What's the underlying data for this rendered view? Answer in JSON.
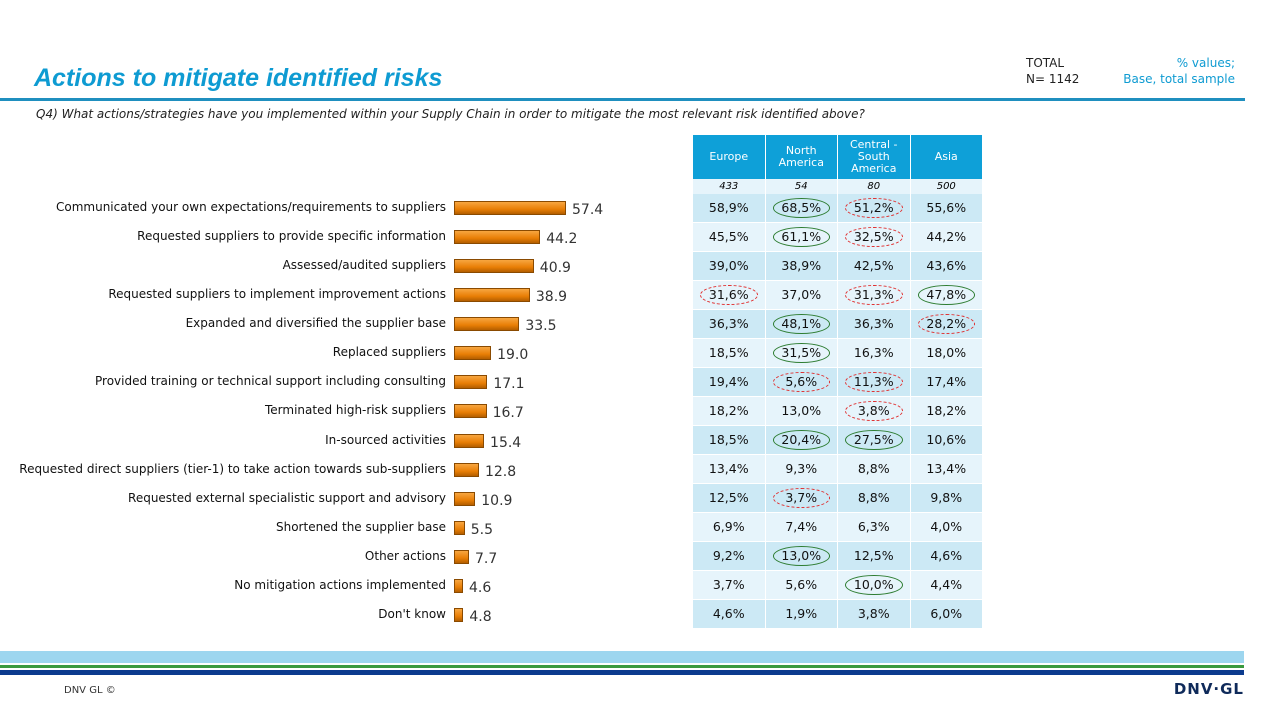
{
  "title": "Actions to mitigate identified risks",
  "total_label": "TOTAL",
  "total_n": "N= 1142",
  "note_line1": "% values;",
  "note_line2": "Base, total sample",
  "question": "Q4) What actions/strategies have you implemented within your Supply Chain in order to mitigate the most relevant risk identified above?",
  "footer": {
    "copyright": "DNV GL ©",
    "logo": "DNV·GL"
  },
  "colors": {
    "bar": "#e87e05",
    "accent": "#0e9bd2",
    "higher": "#2e7d32",
    "lower": "#e03030"
  },
  "chart_data": {
    "type": "bar",
    "orientation": "horizontal",
    "xlim": [
      0,
      100
    ],
    "grid": false,
    "categories": [
      "Communicated your own expectations/requirements to suppliers",
      "Requested suppliers to provide specific information",
      "Assessed/audited suppliers",
      "Requested suppliers to implement improvement actions",
      "Expanded and diversified the supplier base",
      "Replaced suppliers",
      "Provided training or technical support including consulting",
      "Terminated high-risk suppliers",
      "In-sourced activities",
      "Requested direct suppliers (tier-1) to take action towards sub-suppliers",
      "Requested external specialistic support and advisory",
      "Shortened the supplier base",
      "Other actions",
      "No mitigation actions implemented",
      "Don't know"
    ],
    "values": [
      57.4,
      44.2,
      40.9,
      38.9,
      33.5,
      19.0,
      17.1,
      16.7,
      15.4,
      12.8,
      10.9,
      5.5,
      7.7,
      4.6,
      4.8
    ],
    "value_labels": [
      "57.4",
      "44.2",
      "40.9",
      "38.9",
      "33.5",
      "19.0",
      "17.1",
      "16.7",
      "15.4",
      "12.8",
      "10.9",
      "5.5",
      "7.7",
      "4.6",
      "4.8"
    ]
  },
  "table": {
    "headers": [
      "Europe",
      "North America",
      "Central - South America",
      "Asia"
    ],
    "bases": [
      "433",
      "54",
      "80",
      "500"
    ],
    "rows": [
      [
        "58,9%",
        "68,5%",
        "51,2%",
        "55,6%"
      ],
      [
        "45,5%",
        "61,1%",
        "32,5%",
        "44,2%"
      ],
      [
        "39,0%",
        "38,9%",
        "42,5%",
        "43,6%"
      ],
      [
        "31,6%",
        "37,0%",
        "31,3%",
        "47,8%"
      ],
      [
        "36,3%",
        "48,1%",
        "36,3%",
        "28,2%"
      ],
      [
        "18,5%",
        "31,5%",
        "16,3%",
        "18,0%"
      ],
      [
        "19,4%",
        "5,6%",
        "11,3%",
        "17,4%"
      ],
      [
        "18,2%",
        "13,0%",
        "3,8%",
        "18,2%"
      ],
      [
        "18,5%",
        "20,4%",
        "27,5%",
        "10,6%"
      ],
      [
        "13,4%",
        "9,3%",
        "8,8%",
        "13,4%"
      ],
      [
        "12,5%",
        "3,7%",
        "8,8%",
        "9,8%"
      ],
      [
        "6,9%",
        "7,4%",
        "6,3%",
        "4,0%"
      ],
      [
        "9,2%",
        "13,0%",
        "12,5%",
        "4,6%"
      ],
      [
        "3,7%",
        "5,6%",
        "10,0%",
        "4,4%"
      ],
      [
        "4,6%",
        "1,9%",
        "3,8%",
        "6,0%"
      ]
    ],
    "marks": [
      [
        "",
        "up",
        "down",
        ""
      ],
      [
        "",
        "up",
        "down",
        ""
      ],
      [
        "",
        "",
        "",
        ""
      ],
      [
        "down",
        "",
        "down",
        "up"
      ],
      [
        "",
        "up",
        "",
        "down"
      ],
      [
        "",
        "up",
        "",
        ""
      ],
      [
        "",
        "down",
        "down",
        ""
      ],
      [
        "",
        "",
        "down",
        ""
      ],
      [
        "",
        "up",
        "up",
        ""
      ],
      [
        "",
        "",
        "",
        ""
      ],
      [
        "",
        "down",
        "",
        ""
      ],
      [
        "",
        "",
        "",
        ""
      ],
      [
        "",
        "up",
        "",
        ""
      ],
      [
        "",
        "",
        "up",
        ""
      ],
      [
        "",
        "",
        "",
        ""
      ]
    ]
  }
}
